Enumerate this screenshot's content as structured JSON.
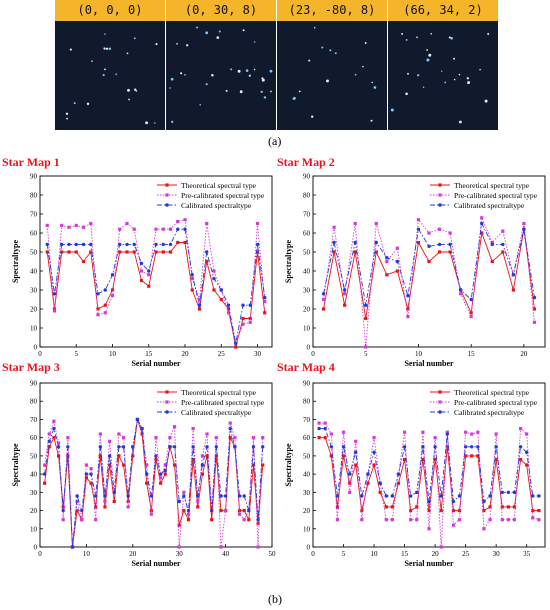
{
  "panel_a": {
    "tiles": [
      {
        "label": "(0, 0, 0)"
      },
      {
        "label": "(0, 30, 8)"
      },
      {
        "label": "(23, -80, 8)"
      },
      {
        "label": "(66, 34, 2)"
      }
    ],
    "caption": "(a)"
  },
  "panel_b": {
    "caption": "(b)"
  },
  "colors": {
    "theoretical": "#e8141c",
    "precal": "#d43ad6",
    "calibrated": "#2438e0",
    "title": "#e8141c",
    "header_bar": "#f5b52a",
    "star_bg": "#101a2c"
  },
  "legend": {
    "theoretical": "Theoretical spectral type",
    "precal": "Pre-calibrated spectral type",
    "calibrated": "Calibrated spectraltype"
  },
  "chart_data": [
    {
      "type": "line",
      "title": "Star Map 1",
      "xlabel": "Serial number",
      "ylabel": "Spectraltype",
      "xlim": [
        0,
        32
      ],
      "ylim": [
        0,
        90
      ],
      "xticks": [
        0,
        5,
        10,
        15,
        20,
        25,
        30
      ],
      "yticks": [
        0,
        10,
        20,
        30,
        40,
        50,
        60,
        70,
        80,
        90
      ],
      "x": [
        1,
        2,
        3,
        4,
        5,
        6,
        7,
        8,
        9,
        10,
        11,
        12,
        13,
        14,
        15,
        16,
        17,
        18,
        19,
        20,
        21,
        22,
        23,
        24,
        25,
        26,
        27,
        28,
        29,
        30,
        31
      ],
      "series": [
        {
          "name": "Theoretical spectral type",
          "values": [
            50,
            20,
            50,
            50,
            50,
            45,
            50,
            20,
            22,
            30,
            50,
            50,
            50,
            35,
            32,
            50,
            50,
            50,
            55,
            55,
            30,
            20,
            45,
            30,
            25,
            20,
            0,
            15,
            15,
            50,
            18
          ]
        },
        {
          "name": "Pre-calibrated spectral type",
          "values": [
            64,
            19,
            64,
            63,
            64,
            63,
            65,
            17,
            18,
            27,
            62,
            65,
            62,
            40,
            38,
            62,
            62,
            62,
            66,
            67,
            36,
            25,
            65,
            40,
            30,
            18,
            2,
            12,
            13,
            65,
            24
          ]
        },
        {
          "name": "Calibrated spectraltype",
          "values": [
            54,
            28,
            54,
            54,
            54,
            54,
            54,
            28,
            30,
            38,
            54,
            54,
            54,
            44,
            40,
            54,
            54,
            54,
            62,
            62,
            38,
            22,
            50,
            36,
            30,
            22,
            2,
            22,
            22,
            54,
            26
          ]
        }
      ]
    },
    {
      "type": "line",
      "title": "Star Map 2",
      "xlabel": "Serial number",
      "ylabel": "Spectraltype",
      "xlim": [
        0,
        22
      ],
      "ylim": [
        0,
        90
      ],
      "xticks": [
        0,
        5,
        10,
        15,
        20
      ],
      "yticks": [
        0,
        10,
        20,
        30,
        40,
        50,
        60,
        70,
        80,
        90
      ],
      "x": [
        1,
        2,
        3,
        4,
        5,
        6,
        7,
        8,
        9,
        10,
        11,
        12,
        13,
        14,
        15,
        16,
        17,
        18,
        19,
        20,
        21
      ],
      "series": [
        {
          "name": "Theoretical spectral type",
          "values": [
            20,
            50,
            22,
            50,
            15,
            50,
            38,
            40,
            20,
            55,
            45,
            50,
            50,
            30,
            18,
            60,
            45,
            50,
            30,
            62,
            20
          ]
        },
        {
          "name": "Pre-calibrated spectral type",
          "values": [
            25,
            63,
            28,
            65,
            0,
            65,
            45,
            52,
            16,
            67,
            60,
            62,
            60,
            28,
            16,
            68,
            55,
            61,
            38,
            65,
            13
          ]
        },
        {
          "name": "Calibrated spectraltype",
          "values": [
            28,
            55,
            30,
            55,
            22,
            55,
            47,
            45,
            27,
            62,
            53,
            54,
            54,
            30,
            25,
            65,
            54,
            54,
            38,
            62,
            26
          ]
        }
      ]
    },
    {
      "type": "line",
      "title": "Star Map 3",
      "xlabel": "Serial number",
      "ylabel": "Spectraltype",
      "xlim": [
        0,
        50
      ],
      "ylim": [
        0,
        90
      ],
      "xticks": [
        0,
        10,
        20,
        30,
        40,
        50
      ],
      "yticks": [
        0,
        10,
        20,
        30,
        40,
        50,
        60,
        70,
        80,
        90
      ],
      "x": [
        1,
        2,
        3,
        4,
        5,
        6,
        7,
        8,
        9,
        10,
        11,
        12,
        13,
        14,
        15,
        16,
        17,
        18,
        19,
        20,
        21,
        22,
        23,
        24,
        25,
        26,
        27,
        28,
        29,
        30,
        31,
        32,
        33,
        34,
        35,
        36,
        37,
        38,
        39,
        40,
        41,
        42,
        43,
        44,
        45,
        46,
        47,
        48
      ],
      "series": [
        {
          "name": "Theoretical spectral type",
          "values": [
            35,
            55,
            60,
            50,
            22,
            50,
            0,
            20,
            15,
            38,
            35,
            22,
            50,
            22,
            45,
            25,
            50,
            45,
            25,
            50,
            70,
            62,
            35,
            20,
            48,
            35,
            40,
            55,
            45,
            12,
            20,
            15,
            48,
            22,
            40,
            50,
            15,
            50,
            20,
            20,
            60,
            55,
            20,
            20,
            15,
            45,
            13,
            45
          ]
        },
        {
          "name": "Pre-calibrated spectral type",
          "values": [
            45,
            62,
            69,
            57,
            15,
            60,
            0,
            25,
            15,
            45,
            43,
            15,
            62,
            25,
            58,
            30,
            62,
            60,
            22,
            55,
            70,
            65,
            45,
            18,
            60,
            38,
            45,
            60,
            66,
            0,
            30,
            18,
            65,
            25,
            50,
            62,
            20,
            60,
            0,
            20,
            68,
            60,
            18,
            15,
            20,
            60,
            0,
            60
          ]
        },
        {
          "name": "Calibrated spectraltype",
          "values": [
            40,
            58,
            65,
            55,
            20,
            55,
            0,
            28,
            20,
            40,
            40,
            28,
            55,
            28,
            50,
            30,
            55,
            55,
            28,
            55,
            70,
            65,
            40,
            28,
            50,
            40,
            42,
            55,
            55,
            25,
            28,
            20,
            55,
            28,
            45,
            55,
            20,
            55,
            28,
            28,
            65,
            55,
            28,
            28,
            20,
            55,
            15,
            55
          ]
        }
      ]
    },
    {
      "type": "line",
      "title": "Star Map 4",
      "xlabel": "Serial number",
      "ylabel": "Spectraltype",
      "xlim": [
        0,
        38
      ],
      "ylim": [
        0,
        90
      ],
      "xticks": [
        0,
        5,
        10,
        15,
        20,
        25,
        30,
        35
      ],
      "yticks": [
        0,
        10,
        20,
        30,
        40,
        50,
        60,
        70,
        80,
        90
      ],
      "x": [
        1,
        2,
        3,
        4,
        5,
        6,
        7,
        8,
        9,
        10,
        11,
        12,
        13,
        14,
        15,
        16,
        17,
        18,
        19,
        20,
        21,
        22,
        23,
        24,
        25,
        26,
        27,
        28,
        29,
        30,
        31,
        32,
        33,
        34,
        35,
        36,
        37
      ],
      "series": [
        {
          "name": "Theoretical spectral type",
          "values": [
            60,
            60,
            50,
            22,
            50,
            35,
            45,
            20,
            35,
            45,
            30,
            22,
            22,
            35,
            48,
            20,
            22,
            48,
            20,
            48,
            20,
            55,
            20,
            20,
            50,
            50,
            50,
            20,
            22,
            48,
            22,
            22,
            22,
            48,
            45,
            20,
            20
          ]
        },
        {
          "name": "Pre-calibrated spectral type",
          "values": [
            68,
            68,
            62,
            15,
            63,
            30,
            58,
            15,
            40,
            60,
            35,
            15,
            15,
            40,
            63,
            15,
            15,
            63,
            10,
            60,
            0,
            63,
            12,
            15,
            63,
            62,
            63,
            10,
            15,
            62,
            15,
            15,
            15,
            65,
            62,
            16,
            15
          ]
        },
        {
          "name": "Calibrated spectraltype",
          "values": [
            65,
            65,
            55,
            28,
            55,
            40,
            52,
            28,
            40,
            52,
            35,
            28,
            28,
            40,
            55,
            28,
            30,
            55,
            25,
            55,
            28,
            62,
            25,
            28,
            55,
            55,
            55,
            25,
            28,
            55,
            30,
            30,
            30,
            55,
            52,
            28,
            28
          ]
        }
      ]
    }
  ]
}
